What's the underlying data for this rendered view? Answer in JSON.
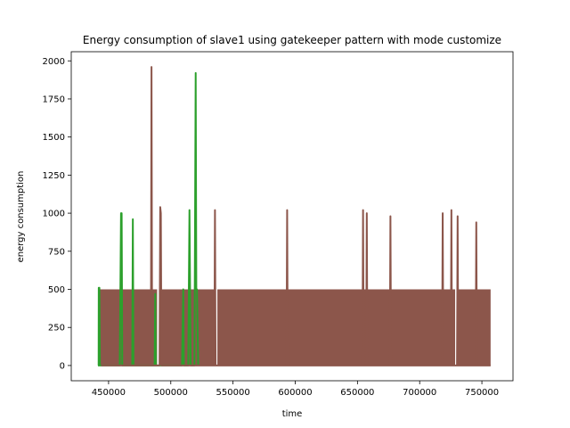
{
  "chart_data": {
    "type": "line",
    "title": "Energy consumption of slave1 using gatekeeper pattern with mode customize",
    "xlabel": "time",
    "ylabel": "energy consumption",
    "xlim": [
      420000,
      775000
    ],
    "ylim": [
      -100,
      2060
    ],
    "xticks": [
      450000,
      500000,
      550000,
      600000,
      650000,
      700000,
      750000
    ],
    "yticks": [
      0,
      250,
      500,
      750,
      1000,
      1250,
      1500,
      1750,
      2000
    ],
    "grid": false,
    "colors": {
      "series_green": "#2ca02c",
      "series_brown": "#8c564b",
      "series_purple": "#9467bd"
    },
    "series": [
      {
        "color": "#2ca02c",
        "x": [
          441500,
          442000,
          442100,
          442600,
          443000,
          459000,
          460000,
          460500,
          461000,
          462000,
          469000,
          469500,
          470000,
          486000,
          487000,
          487500,
          488000,
          509000,
          510000,
          510500,
          514000,
          515000,
          515500,
          516000,
          519000,
          520000,
          520500,
          521000,
          522000
        ],
        "y": [
          0,
          0,
          510,
          510,
          0,
          0,
          1000,
          1000,
          0,
          0,
          0,
          960,
          0,
          0,
          0,
          470,
          0,
          0,
          500,
          0,
          0,
          1020,
          500,
          0,
          0,
          1920,
          500,
          500,
          0
        ]
      },
      {
        "color": "#8c564b",
        "x": [
          444000,
          484000,
          484500,
          485000,
          491000,
          491500,
          492000,
          492500,
          535000,
          535500,
          536000,
          593000,
          593500,
          594000,
          654000,
          654500,
          655000,
          657000,
          657500,
          658000,
          676000,
          676500,
          677000,
          718000,
          718500,
          719000,
          725000,
          725500,
          726000,
          730000,
          730500,
          731000,
          745000,
          745500,
          746000,
          757000
        ],
        "y": [
          0,
          0,
          1960,
          0,
          0,
          1040,
          1000,
          0,
          0,
          1020,
          0,
          0,
          1020,
          0,
          0,
          1020,
          0,
          0,
          1000,
          0,
          0,
          980,
          0,
          0,
          1000,
          0,
          0,
          1020,
          0,
          0,
          980,
          0,
          0,
          940,
          0,
          0
        ]
      }
    ]
  }
}
